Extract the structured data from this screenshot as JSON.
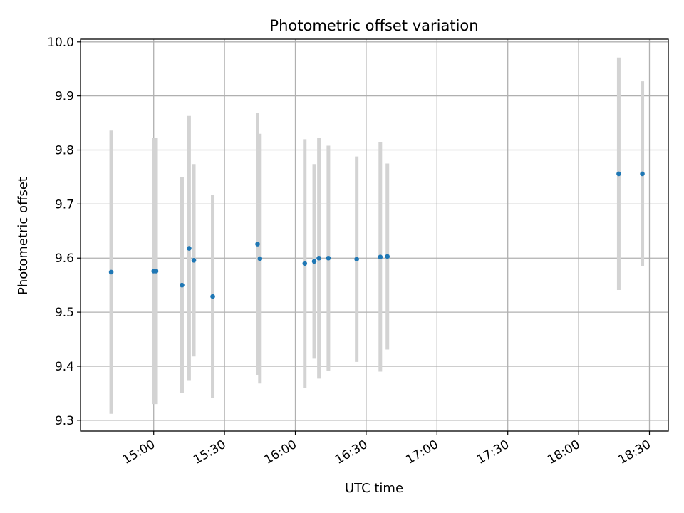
{
  "chart_data": {
    "type": "scatter",
    "title": "Photometric offset variation",
    "xlabel": "UTC time",
    "ylabel": "Photometric offset",
    "x_tick_labels": [
      "15:00",
      "15:30",
      "16:00",
      "16:30",
      "17:00",
      "17:30",
      "18:00",
      "18:30"
    ],
    "y_tick_labels": [
      "9.3",
      "9.4",
      "9.5",
      "9.6",
      "9.7",
      "9.8",
      "9.9",
      "10.0"
    ],
    "xlim": [
      "14:29",
      "18:38"
    ],
    "ylim": [
      9.28,
      10.005
    ],
    "grid": true,
    "legend": "none",
    "marker_color": "#1f77b4",
    "errorbar_color": "#d3d3d3",
    "series": [
      {
        "points": [
          {
            "x": "14:42",
            "y": 9.574,
            "err": 0.262
          },
          {
            "x": "15:00",
            "y": 9.576,
            "err": 0.246
          },
          {
            "x": "15:01",
            "y": 9.576,
            "err": 0.246
          },
          {
            "x": "15:12",
            "y": 9.55,
            "err": 0.2
          },
          {
            "x": "15:15",
            "y": 9.618,
            "err": 0.245
          },
          {
            "x": "15:17",
            "y": 9.596,
            "err": 0.178
          },
          {
            "x": "15:25",
            "y": 9.529,
            "err": 0.188
          },
          {
            "x": "15:44",
            "y": 9.626,
            "err": 0.243
          },
          {
            "x": "15:45",
            "y": 9.599,
            "err": 0.231
          },
          {
            "x": "16:04",
            "y": 9.59,
            "err": 0.23
          },
          {
            "x": "16:08",
            "y": 9.594,
            "err": 0.18
          },
          {
            "x": "16:10",
            "y": 9.6,
            "err": 0.223
          },
          {
            "x": "16:14",
            "y": 9.6,
            "err": 0.208
          },
          {
            "x": "16:26",
            "y": 9.598,
            "err": 0.19
          },
          {
            "x": "16:36",
            "y": 9.602,
            "err": 0.212
          },
          {
            "x": "16:39",
            "y": 9.603,
            "err": 0.172
          },
          {
            "x": "18:17",
            "y": 9.756,
            "err": 0.215
          },
          {
            "x": "18:27",
            "y": 9.756,
            "err": 0.171
          }
        ]
      }
    ]
  }
}
